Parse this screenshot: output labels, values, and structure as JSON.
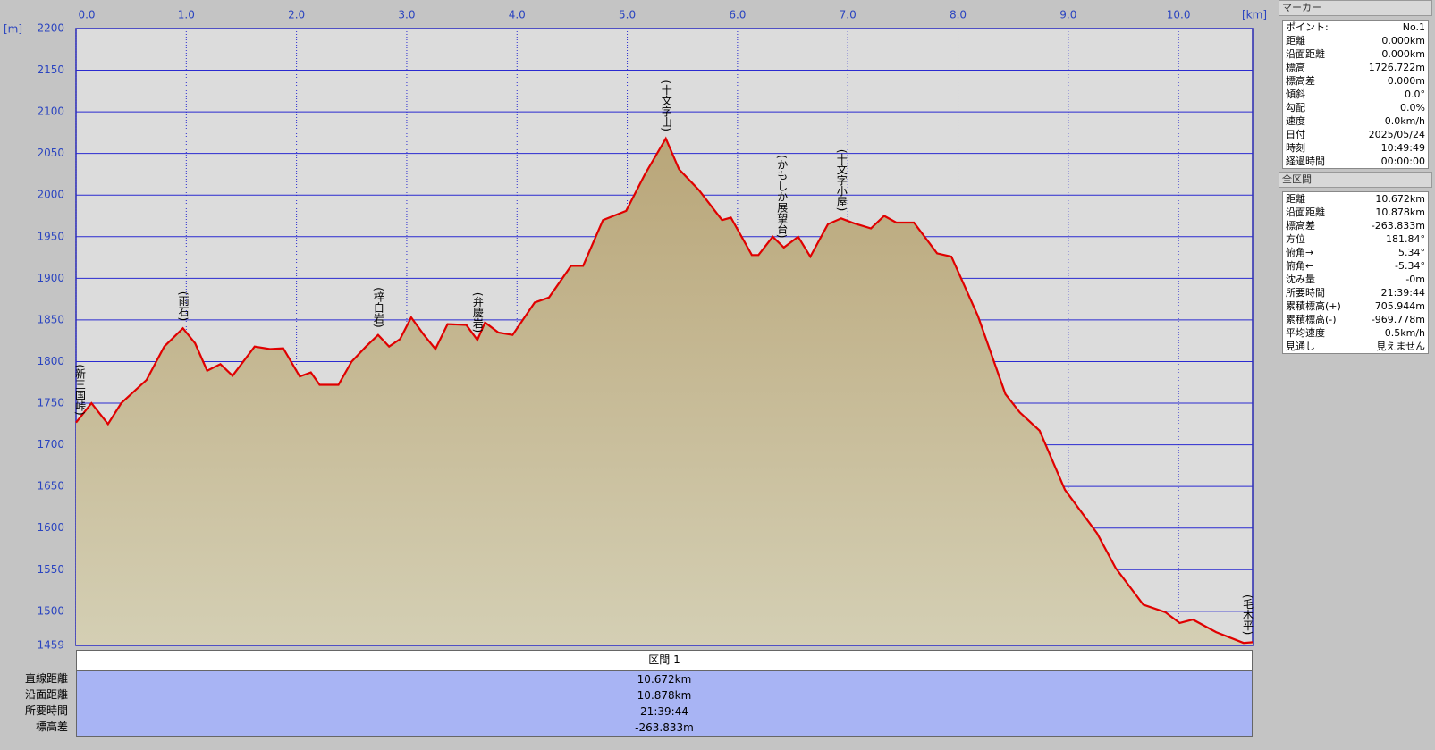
{
  "chart_data": {
    "type": "area",
    "x_unit": "[km]",
    "y_unit": "[m]",
    "x": [
      0,
      0.14,
      0.29,
      0.41,
      0.64,
      0.8,
      0.97,
      1.08,
      1.19,
      1.31,
      1.42,
      1.62,
      1.76,
      1.88,
      2.03,
      2.13,
      2.21,
      2.38,
      2.5,
      2.63,
      2.74,
      2.84,
      2.94,
      3.04,
      3.15,
      3.26,
      3.37,
      3.54,
      3.64,
      3.71,
      3.83,
      3.96,
      4.16,
      4.29,
      4.49,
      4.6,
      4.78,
      4.99,
      5.16,
      5.35,
      5.47,
      5.65,
      5.86,
      5.94,
      6.13,
      6.19,
      6.32,
      6.42,
      6.55,
      6.66,
      6.82,
      6.94,
      7.06,
      7.21,
      7.33,
      7.44,
      7.6,
      7.81,
      7.94,
      8.18,
      8.43,
      8.56,
      8.74,
      8.97,
      9.26,
      9.43,
      9.68,
      9.88,
      10.01,
      10.13,
      10.34,
      10.59,
      10.672
    ],
    "values": [
      1726.722,
      1750,
      1725,
      1750,
      1778,
      1818,
      1840,
      1822,
      1789,
      1797,
      1783,
      1818,
      1815,
      1816,
      1782,
      1787,
      1772,
      1772,
      1800,
      1818,
      1832,
      1818,
      1827,
      1853,
      1833,
      1815,
      1845,
      1844,
      1826,
      1847,
      1835,
      1832,
      1871,
      1877,
      1915,
      1915,
      1970,
      1981,
      2025,
      2068,
      2031,
      2006,
      1970,
      1973,
      1928,
      1928,
      1950,
      1937,
      1950,
      1926,
      1965,
      1972,
      1966,
      1960,
      1975,
      1967,
      1967,
      1930,
      1926,
      1855,
      1761,
      1739,
      1717,
      1646,
      1594,
      1552,
      1508,
      1499,
      1486,
      1490,
      1475,
      1462,
      1462.889
    ],
    "color": "#e00000",
    "fill_color": "#b9a679",
    "grid": true,
    "xlim": [
      0,
      10.672
    ],
    "ylim": [
      1459,
      2200
    ],
    "xticks": [
      {
        "value": 0,
        "label": "0.0"
      },
      {
        "value": 1,
        "label": "1.0"
      },
      {
        "value": 2,
        "label": "2.0"
      },
      {
        "value": 3,
        "label": "3.0"
      },
      {
        "value": 4,
        "label": "4.0"
      },
      {
        "value": 5,
        "label": "5.0"
      },
      {
        "value": 6,
        "label": "6.0"
      },
      {
        "value": 7,
        "label": "7.0"
      },
      {
        "value": 8,
        "label": "8.0"
      },
      {
        "value": 9,
        "label": "9.0"
      },
      {
        "value": 10,
        "label": "10.0"
      }
    ],
    "yticks": [
      1459,
      1500,
      1550,
      1600,
      1650,
      1700,
      1750,
      1800,
      1850,
      1900,
      1950,
      2000,
      2050,
      2100,
      2150,
      2200
    ],
    "places": [
      {
        "label": "(新三国峠)",
        "x": 0
      },
      {
        "label": "(雨石)",
        "x": 0.97
      },
      {
        "label": "(梓白岩)",
        "x": 2.74
      },
      {
        "label": "(弁慶岩)",
        "x": 3.64
      },
      {
        "label": "(十文字山)",
        "x": 5.35
      },
      {
        "label": "(かもしか展望台)",
        "x": 6.4
      },
      {
        "label": "(十文字小屋)",
        "x": 6.94
      },
      {
        "label": "(毛木平)",
        "x": 10.672
      }
    ]
  },
  "marker_panel": {
    "title": "マーカー",
    "rows": [
      [
        "ポイント:",
        "No.1"
      ],
      [
        "距離",
        "0.000km"
      ],
      [
        "沿面距離",
        "0.000km"
      ],
      [
        "標高",
        "1726.722m"
      ],
      [
        "標高差",
        "0.000m"
      ],
      [
        "傾斜",
        "0.0°"
      ],
      [
        "勾配",
        "0.0%"
      ],
      [
        "速度",
        "0.0km/h"
      ],
      [
        "日付",
        "2025/05/24"
      ],
      [
        "時刻",
        "10:49:49"
      ],
      [
        "経過時間",
        "00:00:00"
      ]
    ]
  },
  "total_panel": {
    "title": "全区間",
    "rows": [
      [
        "距離",
        "10.672km"
      ],
      [
        "沿面距離",
        "10.878km"
      ],
      [
        "標高差",
        "-263.833m"
      ],
      [
        "方位",
        "181.84°"
      ],
      [
        "俯角→",
        "5.34°"
      ],
      [
        "俯角←",
        "-5.34°"
      ],
      [
        "沈み量",
        "-0m"
      ],
      [
        "所要時間",
        "21:39:44"
      ],
      [
        "累積標高(+)",
        "705.944m"
      ],
      [
        "累積標高(-)",
        "-969.778m"
      ],
      [
        "平均速度",
        "0.5km/h"
      ],
      [
        "見通し",
        "見えません"
      ]
    ]
  },
  "section_table": {
    "title": "区間 1",
    "rows": [
      [
        "直線距離",
        "10.672km"
      ],
      [
        "沿面距離",
        "10.878km"
      ],
      [
        "所要時間",
        "21:39:44"
      ],
      [
        "標高差",
        "-263.833m"
      ]
    ]
  }
}
